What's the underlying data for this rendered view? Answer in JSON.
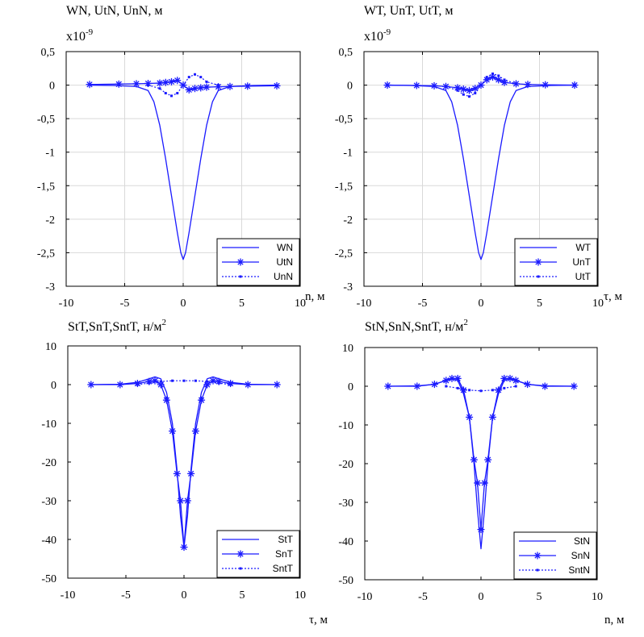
{
  "chart_data": [
    {
      "type": "line",
      "title": "WN, UtN, UnN, м",
      "multiplier": "x10",
      "multiplier_exp": "-9",
      "xlabel": "n, м",
      "ylabel": "",
      "xlim": [
        -10,
        10
      ],
      "ylim": [
        -3,
        0.5
      ],
      "xticks": [
        -10,
        -5,
        0,
        5,
        10
      ],
      "yticks": [
        0.5,
        0,
        -0.5,
        -1,
        -1.5,
        -2,
        -2.5,
        -3
      ],
      "ytick_labels": [
        "0,5",
        "0",
        "-0,5",
        "-1",
        "-1,5",
        "-2",
        "-2,5",
        "-3"
      ],
      "grid": true,
      "legend_position": "bottom-right",
      "series": [
        {
          "name": "WN",
          "style": "solid",
          "x": [
            -8,
            -6,
            -4,
            -3,
            -2.5,
            -2,
            -1.5,
            -1,
            -0.5,
            -0.2,
            0,
            0.2,
            0.5,
            1,
            1.5,
            2,
            2.5,
            3,
            4,
            6,
            8
          ],
          "y": [
            0,
            -0.005,
            -0.02,
            -0.08,
            -0.25,
            -0.6,
            -1.1,
            -1.65,
            -2.2,
            -2.5,
            -2.6,
            -2.5,
            -2.2,
            -1.65,
            -1.1,
            -0.6,
            -0.25,
            -0.08,
            -0.02,
            -0.005,
            0
          ]
        },
        {
          "name": "UtN",
          "style": "star",
          "x": [
            -8,
            -5.5,
            -4,
            -3,
            -2,
            -1.5,
            -1,
            -0.5,
            0,
            0.5,
            1,
            1.5,
            2,
            3,
            4,
            5.5,
            8
          ],
          "y": [
            0.01,
            0.015,
            0.02,
            0.025,
            0.03,
            0.04,
            0.05,
            0.07,
            0,
            -0.07,
            -0.05,
            -0.04,
            -0.03,
            -0.025,
            -0.02,
            -0.015,
            -0.01
          ]
        },
        {
          "name": "UnN",
          "style": "dotted",
          "x": [
            -3,
            -2,
            -1.5,
            -1,
            -0.5,
            0,
            0.5,
            1,
            1.5,
            2,
            3
          ],
          "y": [
            0,
            -0.05,
            -0.12,
            -0.16,
            -0.12,
            0,
            0.12,
            0.16,
            0.12,
            0.05,
            0
          ]
        }
      ]
    },
    {
      "type": "line",
      "title": "WT, UnT, UtT, м",
      "multiplier": "x10",
      "multiplier_exp": "-9",
      "xlabel": "τ, м",
      "ylabel": "",
      "xlim": [
        -10,
        10
      ],
      "ylim": [
        -3,
        0.5
      ],
      "xticks": [
        -10,
        -5,
        0,
        5,
        10
      ],
      "yticks": [
        0.5,
        0,
        -0.5,
        -1,
        -1.5,
        -2,
        -2.5,
        -3
      ],
      "ytick_labels": [
        "0,5",
        "0",
        "-0,5",
        "-1",
        "-1,5",
        "-2",
        "-2,5",
        "-3"
      ],
      "grid": true,
      "legend_position": "bottom-right",
      "series": [
        {
          "name": "WT",
          "style": "solid",
          "x": [
            -8,
            -6,
            -4,
            -3,
            -2.5,
            -2,
            -1.5,
            -1,
            -0.5,
            -0.2,
            0,
            0.2,
            0.5,
            1,
            1.5,
            2,
            2.5,
            3,
            4,
            6,
            8
          ],
          "y": [
            0,
            -0.005,
            -0.02,
            -0.08,
            -0.25,
            -0.6,
            -1.1,
            -1.65,
            -2.2,
            -2.5,
            -2.6,
            -2.5,
            -2.2,
            -1.65,
            -1.1,
            -0.6,
            -0.25,
            -0.08,
            -0.02,
            -0.005,
            0
          ]
        },
        {
          "name": "UnT",
          "style": "star",
          "x": [
            -8,
            -5.5,
            -4,
            -3,
            -2,
            -1.5,
            -1,
            -0.5,
            0,
            0.5,
            1,
            1.5,
            2,
            3,
            4,
            5.5,
            8
          ],
          "y": [
            0,
            -0.005,
            -0.01,
            -0.02,
            -0.04,
            -0.06,
            -0.08,
            -0.05,
            0,
            0.08,
            0.12,
            0.08,
            0.04,
            0.02,
            0.01,
            0.005,
            0
          ]
        },
        {
          "name": "UtT",
          "style": "dotted",
          "x": [
            -3,
            -2,
            -1.5,
            -1,
            -0.5,
            0,
            0.5,
            1,
            1.5,
            2,
            3
          ],
          "y": [
            -0.02,
            -0.08,
            -0.14,
            -0.17,
            -0.12,
            0,
            0.12,
            0.17,
            0.14,
            0.08,
            0.02
          ]
        }
      ]
    },
    {
      "type": "line",
      "title": "StT,SnT,SntT, н/м",
      "title_exp": "2",
      "xlabel": "τ, м",
      "ylabel": "",
      "xlim": [
        -10,
        10
      ],
      "ylim": [
        -50,
        10
      ],
      "xticks": [
        -10,
        -5,
        0,
        5,
        10
      ],
      "yticks": [
        10,
        0,
        -10,
        -20,
        -30,
        -40,
        -50
      ],
      "ytick_labels": [
        "10",
        "0",
        "-10",
        "-20",
        "-30",
        "-40",
        "-50"
      ],
      "grid": false,
      "legend_position": "bottom-right",
      "series": [
        {
          "name": "StT",
          "style": "solid",
          "x": [
            -8,
            -5.5,
            -4,
            -3,
            -2.5,
            -2,
            -1.5,
            -1,
            -0.6,
            -0.3,
            0,
            0.3,
            0.6,
            1,
            1.5,
            2,
            2.5,
            3,
            4,
            5.5,
            8
          ],
          "y": [
            0,
            0.1,
            0.6,
            1.5,
            2,
            1.5,
            -2,
            -10,
            -22,
            -34,
            -42,
            -34,
            -22,
            -10,
            -2,
            1.5,
            2,
            1.5,
            0.6,
            0.1,
            0
          ]
        },
        {
          "name": "SnT",
          "style": "star",
          "x": [
            -8,
            -5.5,
            -4,
            -3,
            -2.5,
            -2,
            -1.5,
            -1,
            -0.6,
            -0.3,
            0,
            0.3,
            0.6,
            1,
            1.5,
            2,
            2.5,
            3,
            4,
            5.5,
            8
          ],
          "y": [
            0,
            0,
            0.3,
            0.8,
            1,
            0,
            -4,
            -12,
            -23,
            -30,
            -42,
            -30,
            -23,
            -12,
            -4,
            0,
            1,
            0.8,
            0.3,
            0,
            0
          ]
        },
        {
          "name": "SntT",
          "style": "dotted",
          "x": [
            -4,
            -3,
            -2,
            -1,
            0,
            1,
            2,
            3,
            4
          ],
          "y": [
            0,
            0.4,
            0.8,
            1,
            1,
            1,
            0.8,
            0.4,
            0
          ]
        }
      ]
    },
    {
      "type": "line",
      "title": "StN,SnN,SntT, н/м",
      "title_exp": "2",
      "xlabel": "n, м",
      "ylabel": "",
      "xlim": [
        -10,
        10
      ],
      "ylim": [
        -50,
        10
      ],
      "xticks": [
        -10,
        -5,
        0,
        5,
        10
      ],
      "yticks": [
        10,
        0,
        -10,
        -20,
        -30,
        -40,
        -50
      ],
      "ytick_labels": [
        "10",
        "0",
        "-10",
        "-20",
        "-30",
        "-40",
        "-50"
      ],
      "grid": false,
      "legend_position": "bottom-right",
      "series": [
        {
          "name": "StN",
          "style": "solid",
          "x": [
            -8,
            -5.5,
            -4,
            -3,
            -2.5,
            -2,
            -1.5,
            -1,
            -0.6,
            -0.3,
            0,
            0.3,
            0.6,
            1,
            1.5,
            2,
            2.5,
            3,
            4,
            5.5,
            8
          ],
          "y": [
            0,
            0.1,
            0.5,
            1.5,
            2,
            1.5,
            -2,
            -8,
            -20,
            -32,
            -42,
            -32,
            -20,
            -8,
            -2,
            1.5,
            2,
            1.5,
            0.5,
            0.1,
            0
          ]
        },
        {
          "name": "SnN",
          "style": "star",
          "x": [
            -8,
            -5.5,
            -4,
            -3,
            -2.5,
            -2,
            -1.5,
            -1,
            -0.6,
            -0.3,
            0,
            0.3,
            0.6,
            1,
            1.5,
            2,
            2.5,
            3,
            4,
            5.5,
            8
          ],
          "y": [
            0,
            0,
            0.5,
            1.5,
            2,
            2,
            -1,
            -8,
            -19,
            -25,
            -37,
            -25,
            -19,
            -8,
            -1,
            2,
            2,
            1.5,
            0.5,
            0,
            0
          ]
        },
        {
          "name": "SntN",
          "style": "dotted",
          "x": [
            -3,
            -2,
            -1,
            0,
            1,
            2,
            3
          ],
          "y": [
            0,
            -0.5,
            -1,
            -1.2,
            -1,
            -0.5,
            0
          ]
        }
      ]
    }
  ]
}
